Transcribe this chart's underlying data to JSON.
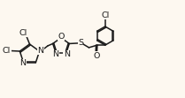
{
  "bg_color": "#fdf8f0",
  "bond_color": "#1a1a1a",
  "bond_width": 1.1,
  "font_size": 6.8,
  "font_color": "#1a1a1a",
  "figsize": [
    2.09,
    1.11
  ],
  "dpi": 100,
  "xlim": [
    0.0,
    1.0
  ],
  "ylim": [
    0.0,
    1.0
  ]
}
